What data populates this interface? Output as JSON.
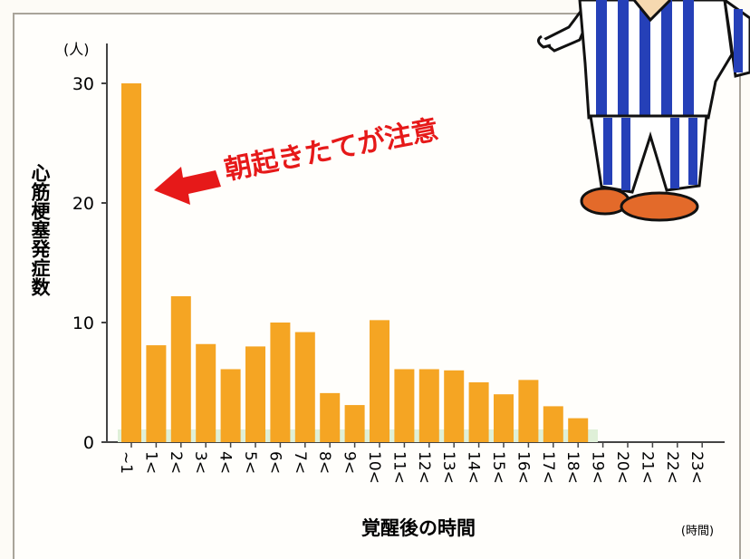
{
  "chart_data": {
    "type": "bar",
    "ylabel": "心筋梗塞発症数",
    "yunit": "(人)",
    "xlabel": "覚醒後の時間",
    "xunit": "(時間)",
    "annotation": "朝起きたてが注意",
    "ylim": [
      0,
      30
    ],
    "yticks": [
      0,
      10,
      20,
      30
    ],
    "categories": [
      "~1",
      "1<",
      "2<",
      "3<",
      "4<",
      "5<",
      "6<",
      "7<",
      "8<",
      "9<",
      "10<",
      "11<",
      "12<",
      "13<",
      "14<",
      "15<",
      "16<",
      "17<",
      "18<",
      "19<",
      "20<",
      "21<",
      "22<",
      "23<"
    ],
    "values": [
      30,
      8.1,
      12.2,
      8.2,
      6.1,
      8.0,
      10.0,
      9.2,
      4.1,
      3.1,
      10.2,
      6.1,
      6.1,
      6.0,
      5.0,
      4.0,
      5.2,
      3.0,
      2.0,
      0,
      0,
      0,
      0,
      0
    ],
    "bar_color": "#f5a523",
    "arrow_color": "#e61919",
    "grid": false
  },
  "mascot": {
    "icon": "pajama-man-illustration"
  }
}
